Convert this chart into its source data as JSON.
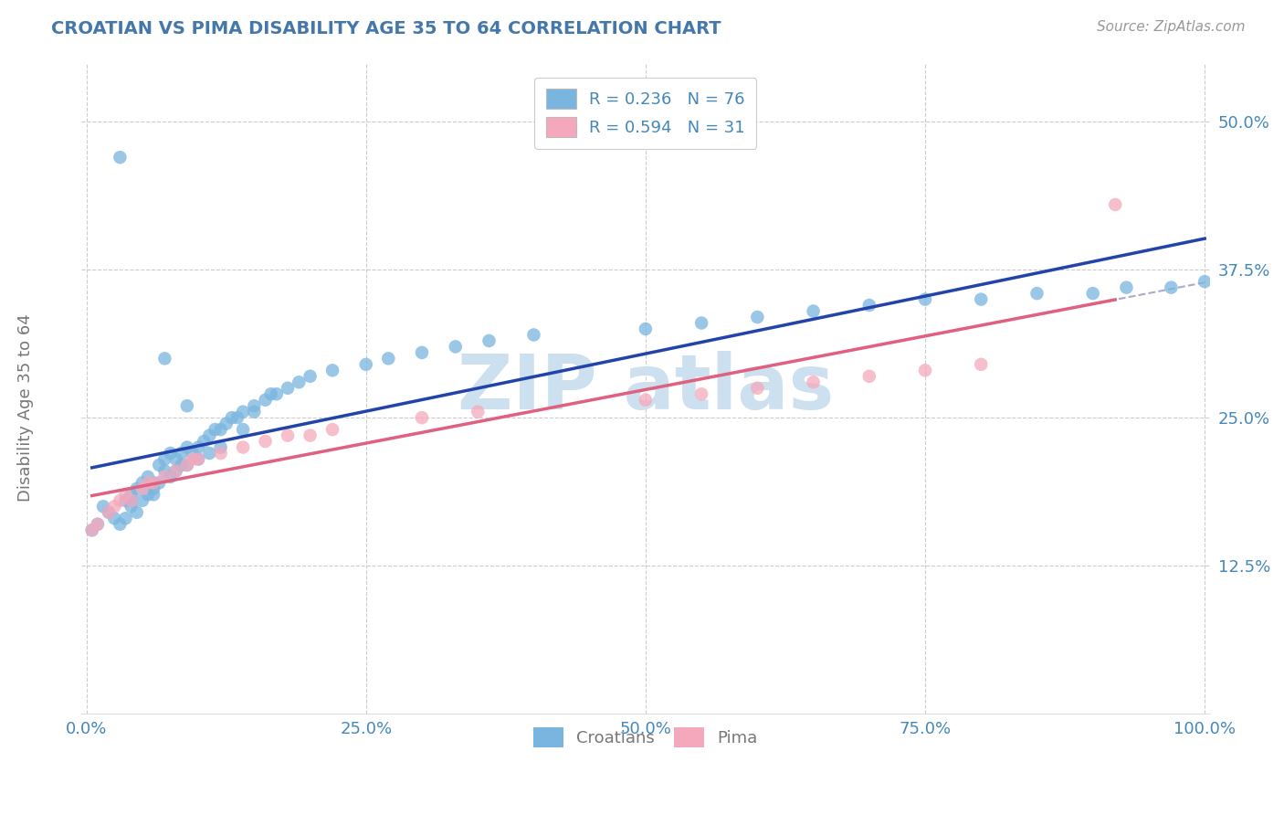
{
  "title": "CROATIAN VS PIMA DISABILITY AGE 35 TO 64 CORRELATION CHART",
  "source_text": "Source: ZipAtlas.com",
  "ylabel": "Disability Age 35 to 64",
  "xlim": [
    -0.005,
    1.005
  ],
  "ylim": [
    0.0,
    0.55
  ],
  "xticks": [
    0.0,
    0.25,
    0.5,
    0.75,
    1.0
  ],
  "xticklabels": [
    "0.0%",
    "25.0%",
    "50.0%",
    "75.0%",
    "100.0%"
  ],
  "yticks": [
    0.125,
    0.25,
    0.375,
    0.5
  ],
  "yticklabels": [
    "12.5%",
    "25.0%",
    "37.5%",
    "50.0%"
  ],
  "legend_r1": "R = 0.236   N = 76",
  "legend_r2": "R = 0.594   N = 31",
  "croatian_color": "#7ab5e0",
  "pima_color": "#f5a8bc",
  "croatian_line_color": "#2244aa",
  "pima_line_color": "#e06080",
  "gray_dash_color": "#aaaacc",
  "background_color": "#ffffff",
  "grid_color": "#cccccc",
  "title_color": "#4477aa",
  "axis_label_color": "#777777",
  "tick_color": "#4488bb",
  "watermark_color": "#cce0ef",
  "croatians_x": [
    0.005,
    0.01,
    0.015,
    0.02,
    0.025,
    0.03,
    0.035,
    0.035,
    0.04,
    0.04,
    0.04,
    0.045,
    0.045,
    0.05,
    0.05,
    0.055,
    0.055,
    0.06,
    0.06,
    0.06,
    0.065,
    0.065,
    0.07,
    0.07,
    0.075,
    0.075,
    0.08,
    0.08,
    0.085,
    0.085,
    0.09,
    0.09,
    0.095,
    0.1,
    0.1,
    0.105,
    0.11,
    0.11,
    0.115,
    0.12,
    0.12,
    0.125,
    0.13,
    0.135,
    0.14,
    0.14,
    0.15,
    0.15,
    0.16,
    0.165,
    0.17,
    0.18,
    0.19,
    0.2,
    0.22,
    0.25,
    0.27,
    0.3,
    0.33,
    0.36,
    0.4,
    0.5,
    0.55,
    0.6,
    0.65,
    0.7,
    0.75,
    0.8,
    0.85,
    0.9,
    0.93,
    0.97,
    1.0,
    0.03,
    0.07,
    0.09
  ],
  "croatians_y": [
    0.155,
    0.16,
    0.175,
    0.17,
    0.165,
    0.16,
    0.18,
    0.165,
    0.18,
    0.185,
    0.175,
    0.19,
    0.17,
    0.195,
    0.18,
    0.2,
    0.185,
    0.195,
    0.19,
    0.185,
    0.21,
    0.195,
    0.215,
    0.205,
    0.22,
    0.2,
    0.215,
    0.205,
    0.22,
    0.21,
    0.225,
    0.21,
    0.22,
    0.225,
    0.215,
    0.23,
    0.235,
    0.22,
    0.24,
    0.24,
    0.225,
    0.245,
    0.25,
    0.25,
    0.255,
    0.24,
    0.26,
    0.255,
    0.265,
    0.27,
    0.27,
    0.275,
    0.28,
    0.285,
    0.29,
    0.295,
    0.3,
    0.305,
    0.31,
    0.315,
    0.32,
    0.325,
    0.33,
    0.335,
    0.34,
    0.345,
    0.35,
    0.35,
    0.355,
    0.355,
    0.36,
    0.36,
    0.365,
    0.47,
    0.3,
    0.26
  ],
  "pima_x": [
    0.005,
    0.01,
    0.02,
    0.025,
    0.03,
    0.035,
    0.04,
    0.05,
    0.055,
    0.06,
    0.07,
    0.08,
    0.09,
    0.095,
    0.1,
    0.12,
    0.14,
    0.16,
    0.18,
    0.2,
    0.22,
    0.3,
    0.35,
    0.5,
    0.55,
    0.6,
    0.65,
    0.7,
    0.75,
    0.8,
    0.92
  ],
  "pima_y": [
    0.155,
    0.16,
    0.17,
    0.175,
    0.18,
    0.185,
    0.18,
    0.19,
    0.195,
    0.195,
    0.2,
    0.205,
    0.21,
    0.215,
    0.215,
    0.22,
    0.225,
    0.23,
    0.235,
    0.235,
    0.24,
    0.25,
    0.255,
    0.265,
    0.27,
    0.275,
    0.28,
    0.285,
    0.29,
    0.295,
    0.43
  ]
}
